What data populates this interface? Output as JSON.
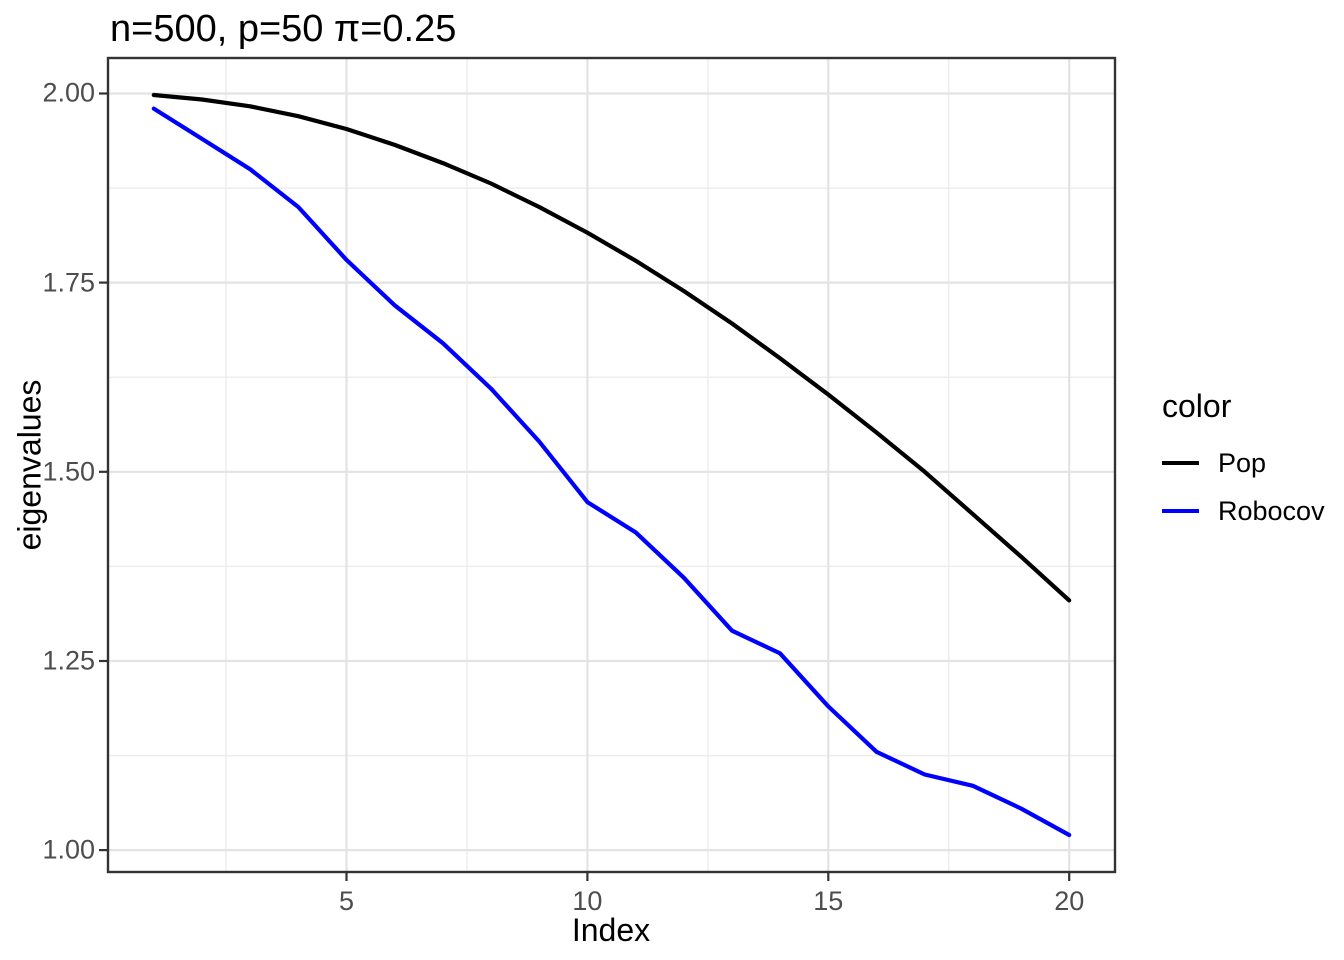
{
  "page": {
    "background": "#ffffff"
  },
  "colors": {
    "grid_major": "#e3e3e3",
    "grid_minor": "#ededed",
    "panel_border": "#333333",
    "tick_mark": "#333333",
    "tick_label": "#4d4d4d",
    "title_text": "#000000"
  },
  "chart_data": {
    "type": "line",
    "title": "n=500, p=50 π=0.25",
    "xlabel": "Index",
    "ylabel": "eigenvalues",
    "legend_title": "color",
    "legend_position": "right",
    "grid": "major+minor",
    "x": [
      1,
      2,
      3,
      4,
      5,
      6,
      7,
      8,
      9,
      10,
      11,
      12,
      13,
      14,
      15,
      16,
      17,
      18,
      19,
      20
    ],
    "x_ticks": [
      5,
      10,
      15,
      20
    ],
    "x_minor_ticks": [
      2.5,
      7.5,
      12.5,
      17.5
    ],
    "y_ticks": [
      "1.00",
      "1.25",
      "1.50",
      "1.75",
      "2.00"
    ],
    "y_minor_ticks": [
      1.125,
      1.375,
      1.625,
      1.875
    ],
    "xlim_data": [
      1,
      20
    ],
    "ylim_approx": [
      0.97,
      2.05
    ],
    "series": [
      {
        "name": "Pop",
        "color": "#000000",
        "values": [
          1.998,
          1.992,
          1.983,
          1.97,
          1.953,
          1.932,
          1.908,
          1.881,
          1.85,
          1.816,
          1.779,
          1.739,
          1.696,
          1.65,
          1.602,
          1.552,
          1.5,
          1.444,
          1.388,
          1.33
        ]
      },
      {
        "name": "Robocov",
        "color": "#0000ff",
        "values": [
          1.98,
          1.94,
          1.9,
          1.85,
          1.78,
          1.72,
          1.67,
          1.61,
          1.54,
          1.46,
          1.42,
          1.36,
          1.29,
          1.26,
          1.19,
          1.13,
          1.1,
          1.085,
          1.055,
          1.02
        ]
      }
    ]
  }
}
